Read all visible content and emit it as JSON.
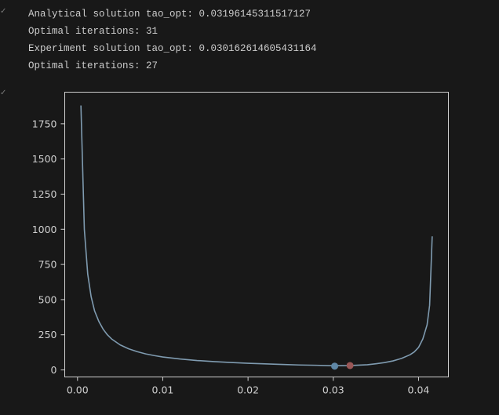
{
  "output_cells": [
    {
      "collapse_glyph": "✓",
      "lines": [
        "Analytical solution tao_opt: 0.03196145311517127",
        "Optimal iterations: 31",
        "Experiment solution tao_opt: 0.030162614605431164",
        "Optimal iterations: 27"
      ]
    },
    {
      "collapse_glyph": "✓"
    }
  ],
  "colors": {
    "background": "#181818",
    "text": "#cccccc",
    "axes": "#cfcfcf",
    "curve": "#7f9bb0",
    "experiment_marker": "#5f87a6",
    "analytical_marker": "#9a5757"
  },
  "chart_data": {
    "type": "line",
    "title": "",
    "xlabel": "",
    "ylabel": "",
    "xlim": [
      -0.0015,
      0.0435
    ],
    "ylim": [
      -50,
      1975
    ],
    "x_ticks": [
      0.0,
      0.01,
      0.02,
      0.03,
      0.04
    ],
    "x_tick_labels": [
      "0.00",
      "0.01",
      "0.02",
      "0.03",
      "0.04"
    ],
    "y_ticks": [
      0,
      250,
      500,
      750,
      1000,
      1250,
      1500,
      1750
    ],
    "y_tick_labels": [
      "0",
      "250",
      "500",
      "750",
      "1000",
      "1250",
      "1500",
      "1750"
    ],
    "grid": false,
    "legend": false,
    "series": [
      {
        "x": [
          0.0004,
          0.0008,
          0.0012,
          0.0016,
          0.002,
          0.0025,
          0.003,
          0.0035,
          0.004,
          0.005,
          0.006,
          0.007,
          0.008,
          0.009,
          0.01,
          0.012,
          0.014,
          0.016,
          0.018,
          0.02,
          0.022,
          0.024,
          0.026,
          0.028,
          0.03,
          0.032,
          0.034,
          0.035,
          0.036,
          0.037,
          0.038,
          0.039,
          0.0395,
          0.04,
          0.0405,
          0.041,
          0.0413,
          0.0416
        ],
        "y": [
          1880,
          1000,
          680,
          520,
          420,
          345,
          290,
          250,
          220,
          178,
          150,
          130,
          114,
          102,
          92,
          78,
          67,
          59,
          53,
          47,
          43,
          39,
          35,
          33,
          30,
          31,
          37,
          44,
          52,
          64,
          82,
          108,
          128,
          160,
          220,
          320,
          460,
          950
        ]
      }
    ],
    "markers": [
      {
        "x": 0.030162614605431164,
        "y": 27
      },
      {
        "x": 0.03196145311517127,
        "y": 31
      }
    ]
  }
}
